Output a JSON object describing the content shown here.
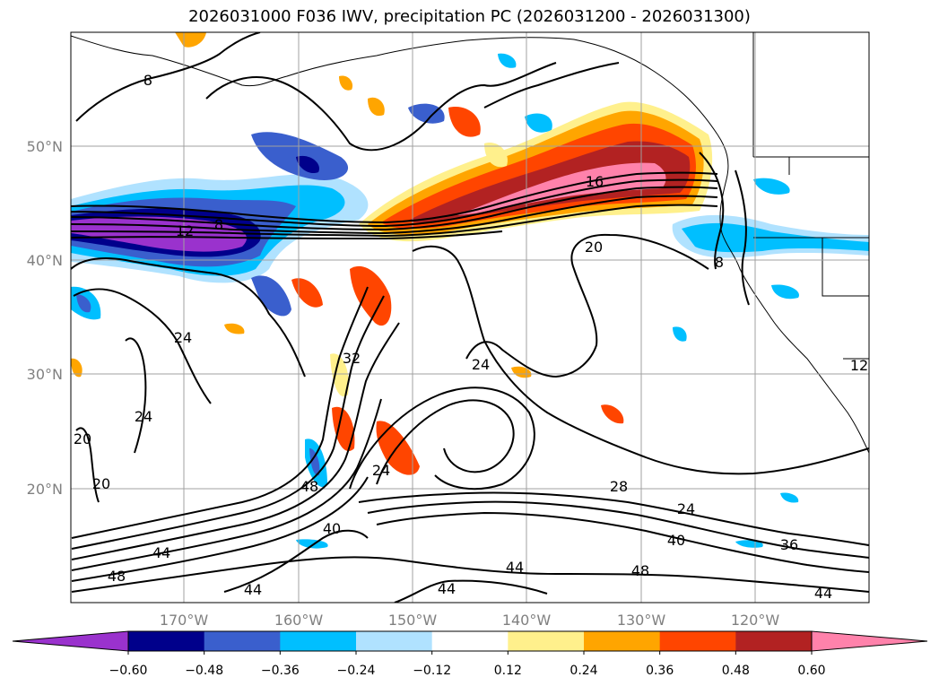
{
  "title": "2026031000 F036 IWV, precipitation PC (2026031200 - 2026031300)",
  "latitude_labels": [
    "50°N",
    "40°N",
    "30°N",
    "20°N"
  ],
  "longitude_labels": [
    "170°W",
    "160°W",
    "150°W",
    "140°W",
    "130°W",
    "120°W"
  ],
  "contour_labels": [
    "8",
    "12",
    "8",
    "16",
    "20",
    "8",
    "24",
    "24",
    "32",
    "24",
    "20",
    "20",
    "48",
    "24",
    "28",
    "24",
    "40",
    "40",
    "36",
    "44",
    "44",
    "48",
    "44",
    "44",
    "48",
    "44",
    "12"
  ],
  "colorbar": {
    "ticks": [
      "−0.60",
      "−0.48",
      "−0.36",
      "−0.24",
      "−0.12",
      "0.12",
      "0.24",
      "0.36",
      "0.48",
      "0.60"
    ],
    "colors": [
      "#9a32cd",
      "#00008b",
      "#3a5fcd",
      "#00bfff",
      "#b0e2ff",
      "#ffffff",
      "#fff08c",
      "#ffa500",
      "#ff4500",
      "#b22222",
      "#ff82ab"
    ],
    "extend": "both"
  }
}
